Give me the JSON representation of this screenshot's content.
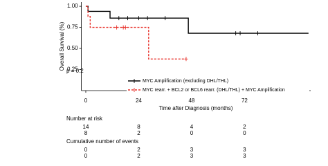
{
  "chart_data": {
    "type": "step",
    "x_label": "Time after Diagnosis (months)",
    "y_label": "Overall Survival (%)",
    "annotation": "p = 0.2",
    "xlim": [
      -2,
      102
    ],
    "xticks": [
      0,
      24,
      48,
      72
    ],
    "ylim": [
      0,
      1.05
    ],
    "yticks": [
      {
        "value": 0.25,
        "label": "0.25"
      },
      {
        "value": 0.5,
        "label": "0.50"
      },
      {
        "value": 0.75,
        "label": "0.75"
      },
      {
        "value": 1,
        "label": "1.00"
      }
    ],
    "series": [
      {
        "name": "MYC Amplification (excluding DHL/THL)",
        "color": "#000000",
        "dashed": false,
        "x": [
          0,
          1,
          11,
          46.5,
          101
        ],
        "values": [
          1,
          0.94,
          0.86,
          0.68,
          0.68
        ],
        "censor_x": [
          15,
          19,
          24,
          28,
          36,
          68,
          70,
          78
        ],
        "censor_values": [
          0.86,
          0.86,
          0.86,
          0.86,
          0.86,
          0.68,
          0.68,
          0.68
        ]
      },
      {
        "name": "MYC rearr. + BCL2 or BCL6 rearr. (DHL/THL) + MYC Amplification",
        "color": "#e8302a",
        "dashed": true,
        "x": [
          0,
          1,
          2,
          28.5,
          45.5
        ],
        "values": [
          1,
          0.88,
          0.75,
          0.375,
          0.375
        ],
        "censor_x": [
          14,
          17,
          18,
          45.5
        ],
        "censor_values": [
          0.75,
          0.75,
          0.75,
          0.375
        ]
      }
    ],
    "tables": [
      {
        "title": "Number at risk",
        "rows": [
          [
            14,
            8,
            4,
            2
          ],
          [
            8,
            2,
            0,
            0
          ]
        ]
      },
      {
        "title": "Cumulative number of events",
        "rows": [
          [
            0,
            2,
            3,
            3
          ],
          [
            0,
            2,
            3,
            3
          ]
        ]
      }
    ]
  }
}
